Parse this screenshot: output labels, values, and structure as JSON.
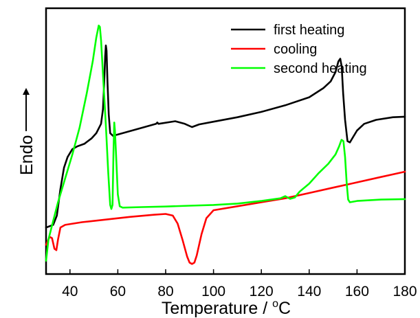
{
  "chart_data": {
    "type": "line",
    "title": "",
    "xlabel": "Temperature / °C",
    "xlabel_parts": {
      "base": "Temperature / ",
      "superscript": "o",
      "unit": "C"
    },
    "ylabel": "Endo",
    "xlim": [
      30,
      180
    ],
    "xticks": [
      40,
      60,
      80,
      100,
      120,
      140,
      160,
      180
    ],
    "yticks_shown": false,
    "ylim": [
      0,
      100
    ],
    "legend_position": "top-right",
    "series": [
      {
        "name": "first heating",
        "color": "#000000",
        "points": [
          [
            30,
            17.5
          ],
          [
            33,
            18.5
          ],
          [
            34.5,
            22
          ],
          [
            36,
            32
          ],
          [
            37.5,
            40
          ],
          [
            39,
            44
          ],
          [
            41,
            47
          ],
          [
            43,
            48
          ],
          [
            46,
            49
          ],
          [
            49,
            51
          ],
          [
            51,
            53
          ],
          [
            53,
            56.5
          ],
          [
            53.8,
            62
          ],
          [
            54.3,
            72
          ],
          [
            54.7,
            82
          ],
          [
            55,
            86
          ],
          [
            55.3,
            84
          ],
          [
            55.7,
            72
          ],
          [
            56.2,
            60
          ],
          [
            56.8,
            53
          ],
          [
            58,
            52
          ],
          [
            62,
            53
          ],
          [
            70,
            55
          ],
          [
            76,
            56.5
          ],
          [
            76.5,
            57
          ],
          [
            77,
            56.5
          ],
          [
            84,
            57.5
          ],
          [
            88,
            56.5
          ],
          [
            91,
            55.3
          ],
          [
            94,
            56.3
          ],
          [
            100,
            57.3
          ],
          [
            110,
            59
          ],
          [
            120,
            61
          ],
          [
            130,
            63.5
          ],
          [
            140,
            66.5
          ],
          [
            146,
            70
          ],
          [
            149,
            72.5
          ],
          [
            151,
            76
          ],
          [
            152.2,
            80
          ],
          [
            153,
            81
          ],
          [
            153.6,
            78
          ],
          [
            154.2,
            68
          ],
          [
            155,
            58
          ],
          [
            156,
            50
          ],
          [
            157,
            49.5
          ],
          [
            158,
            51
          ],
          [
            160,
            54
          ],
          [
            163,
            56.5
          ],
          [
            168,
            58
          ],
          [
            175,
            59
          ],
          [
            180,
            59.2
          ]
        ]
      },
      {
        "name": "cooling",
        "color": "#ff0000",
        "points": [
          [
            30,
            11
          ],
          [
            31.5,
            14
          ],
          [
            32.5,
            13.5
          ],
          [
            33.5,
            9.5
          ],
          [
            34.3,
            9
          ],
          [
            35,
            13
          ],
          [
            36,
            17.5
          ],
          [
            38,
            18.5
          ],
          [
            45,
            19.5
          ],
          [
            55,
            20.5
          ],
          [
            65,
            21.5
          ],
          [
            75,
            22.3
          ],
          [
            80,
            22.6
          ],
          [
            83,
            22
          ],
          [
            85,
            19
          ],
          [
            87,
            13
          ],
          [
            89,
            6.5
          ],
          [
            90,
            4.3
          ],
          [
            91,
            3.8
          ],
          [
            92,
            4.3
          ],
          [
            93,
            7
          ],
          [
            95,
            15
          ],
          [
            97,
            21
          ],
          [
            100,
            24
          ],
          [
            110,
            25.5
          ],
          [
            120,
            27
          ],
          [
            130,
            28.5
          ],
          [
            140,
            30.5
          ],
          [
            150,
            32.5
          ],
          [
            160,
            34.5
          ],
          [
            170,
            36.5
          ],
          [
            180,
            38.5
          ]
        ]
      },
      {
        "name": "second heating",
        "color": "#00ff00",
        "points": [
          [
            30,
            5
          ],
          [
            31,
            13
          ],
          [
            33,
            20
          ],
          [
            35,
            27
          ],
          [
            38,
            36
          ],
          [
            41,
            45
          ],
          [
            44,
            55
          ],
          [
            47,
            68
          ],
          [
            49.5,
            80
          ],
          [
            51,
            89
          ],
          [
            52,
            93.5
          ],
          [
            52.5,
            93
          ],
          [
            53,
            88
          ],
          [
            54,
            72
          ],
          [
            55,
            56
          ],
          [
            56,
            38
          ],
          [
            56.8,
            26
          ],
          [
            57.3,
            24.5
          ],
          [
            57.8,
            26
          ],
          [
            58.2,
            46
          ],
          [
            58.5,
            57
          ],
          [
            58.8,
            54
          ],
          [
            59.3,
            44
          ],
          [
            60,
            30
          ],
          [
            60.8,
            25.5
          ],
          [
            62,
            25
          ],
          [
            70,
            25.2
          ],
          [
            80,
            25.4
          ],
          [
            90,
            25.7
          ],
          [
            100,
            26
          ],
          [
            110,
            26.5
          ],
          [
            120,
            27.5
          ],
          [
            128,
            28.5
          ],
          [
            130,
            29.3
          ],
          [
            132,
            28.3
          ],
          [
            134,
            28.8
          ],
          [
            136,
            31
          ],
          [
            140,
            34
          ],
          [
            144,
            38
          ],
          [
            148,
            41.5
          ],
          [
            151,
            45
          ],
          [
            152.5,
            48
          ],
          [
            153.5,
            50.5
          ],
          [
            154.3,
            50
          ],
          [
            155,
            44
          ],
          [
            155.7,
            34
          ],
          [
            156.3,
            28
          ],
          [
            157,
            27
          ],
          [
            160,
            27.5
          ],
          [
            170,
            28
          ],
          [
            180,
            28.2
          ]
        ]
      }
    ]
  }
}
